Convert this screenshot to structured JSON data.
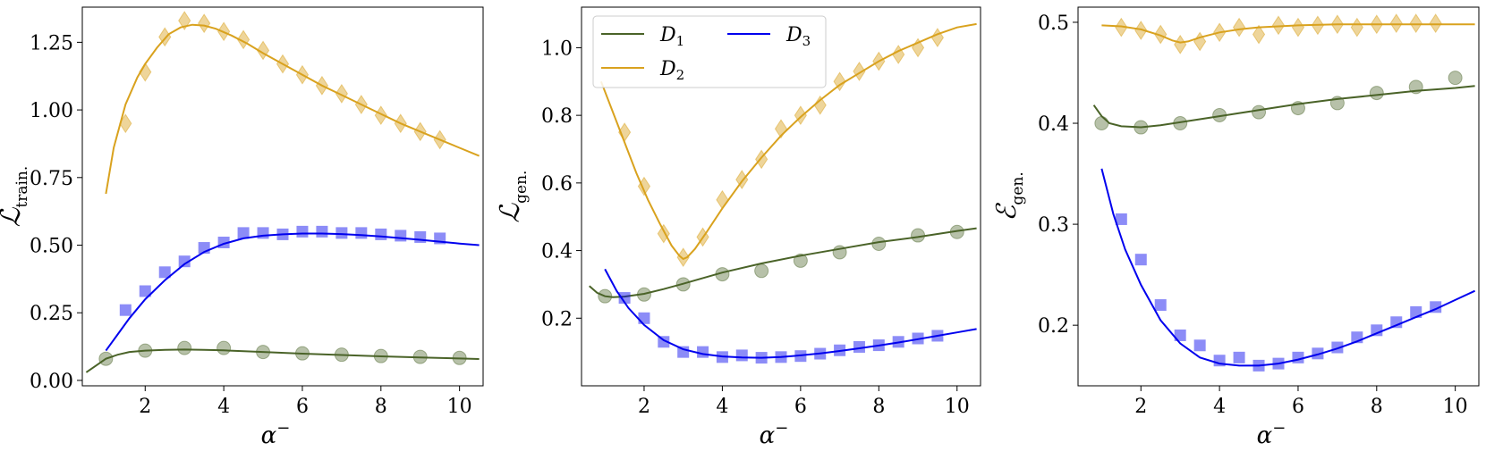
{
  "colors": {
    "D1": "#4a6328",
    "D2": "#d9a21e",
    "D3": "#0000ee"
  },
  "legend": {
    "items": [
      {
        "key": "D1",
        "label_main": "D",
        "label_sub": "1"
      },
      {
        "key": "D2",
        "label_main": "D",
        "label_sub": "2"
      },
      {
        "key": "D3",
        "label_main": "D",
        "label_sub": "3"
      }
    ]
  },
  "chart_data": [
    {
      "type": "line",
      "xlabel_main": "α",
      "xlabel_sup": "−",
      "ylabel_main": "ℒ",
      "ylabel_sub": "train.",
      "xlim": [
        0.4,
        10.6
      ],
      "ylim": [
        -0.02,
        1.38
      ],
      "xticks": [
        2,
        4,
        6,
        8,
        10
      ],
      "yticks": [
        0.0,
        0.25,
        0.5,
        0.75,
        1.0,
        1.25
      ],
      "ytick_labels": [
        "0.00",
        "0.25",
        "0.50",
        "0.75",
        "1.00",
        "1.25"
      ],
      "series": [
        {
          "key": "D2",
          "marker": "diamond",
          "curve_x": [
            1.0,
            1.2,
            1.5,
            1.8,
            2.0,
            2.3,
            2.6,
            2.9,
            3.2,
            3.5,
            3.8,
            4.2,
            4.6,
            5.0,
            5.5,
            6.0,
            6.5,
            7.0,
            7.5,
            8.0,
            8.5,
            9.0,
            9.5,
            10.0,
            10.5
          ],
          "curve_y": [
            0.69,
            0.86,
            1.02,
            1.12,
            1.17,
            1.23,
            1.28,
            1.305,
            1.315,
            1.312,
            1.3,
            1.275,
            1.245,
            1.21,
            1.17,
            1.13,
            1.09,
            1.055,
            1.02,
            0.985,
            0.95,
            0.92,
            0.89,
            0.86,
            0.83
          ],
          "points_x": [
            1.5,
            2.0,
            2.5,
            3.0,
            3.5,
            4.0,
            4.5,
            5.0,
            5.5,
            6.0,
            6.5,
            7.0,
            7.5,
            8.0,
            8.5,
            9.0,
            9.5
          ],
          "points_y": [
            0.95,
            1.14,
            1.27,
            1.33,
            1.32,
            1.29,
            1.26,
            1.22,
            1.17,
            1.13,
            1.09,
            1.06,
            1.02,
            0.98,
            0.95,
            0.92,
            0.89
          ]
        },
        {
          "key": "D3",
          "marker": "square",
          "curve_x": [
            1.0,
            1.3,
            1.6,
            2.0,
            2.5,
            3.0,
            3.5,
            4.0,
            4.5,
            5.0,
            5.5,
            6.0,
            6.5,
            7.0,
            7.5,
            8.0,
            8.5,
            9.0,
            9.5,
            10.0,
            10.5
          ],
          "curve_y": [
            0.11,
            0.17,
            0.23,
            0.3,
            0.37,
            0.43,
            0.475,
            0.505,
            0.525,
            0.535,
            0.54,
            0.543,
            0.543,
            0.541,
            0.537,
            0.532,
            0.526,
            0.52,
            0.513,
            0.506,
            0.5
          ],
          "points_x": [
            1.5,
            2.0,
            2.5,
            3.0,
            3.5,
            4.0,
            4.5,
            5.0,
            5.5,
            6.0,
            6.5,
            7.0,
            7.5,
            8.0,
            8.5,
            9.0,
            9.5
          ],
          "points_y": [
            0.26,
            0.33,
            0.4,
            0.44,
            0.49,
            0.51,
            0.545,
            0.545,
            0.54,
            0.55,
            0.55,
            0.545,
            0.545,
            0.54,
            0.535,
            0.53,
            0.525
          ]
        },
        {
          "key": "D1",
          "marker": "circle",
          "curve_x": [
            0.5,
            0.8,
            1.0,
            1.3,
            1.6,
            2.0,
            2.5,
            3.0,
            3.5,
            4.0,
            5.0,
            6.0,
            7.0,
            8.0,
            9.0,
            10.0,
            10.5
          ],
          "curve_y": [
            0.03,
            0.06,
            0.08,
            0.095,
            0.105,
            0.11,
            0.113,
            0.114,
            0.113,
            0.111,
            0.105,
            0.099,
            0.094,
            0.089,
            0.085,
            0.081,
            0.079
          ],
          "points_x": [
            1,
            2,
            3,
            4,
            5,
            6,
            7,
            8,
            9,
            10
          ],
          "points_y": [
            0.08,
            0.11,
            0.12,
            0.12,
            0.105,
            0.1,
            0.095,
            0.09,
            0.087,
            0.083
          ]
        }
      ]
    },
    {
      "type": "line",
      "xlabel_main": "α",
      "xlabel_sup": "−",
      "ylabel_main": "ℒ",
      "ylabel_sub": "gen.",
      "xlim": [
        0.4,
        10.6
      ],
      "ylim": [
        0.0,
        1.12
      ],
      "xticks": [
        2,
        4,
        6,
        8,
        10
      ],
      "yticks": [
        0.2,
        0.4,
        0.6,
        0.8,
        1.0
      ],
      "ytick_labels": [
        "0.2",
        "0.4",
        "0.6",
        "0.8",
        "1.0"
      ],
      "series": [
        {
          "key": "D2",
          "marker": "diamond",
          "curve_x": [
            0.9,
            1.2,
            1.5,
            1.8,
            2.1,
            2.4,
            2.7,
            2.9,
            3.0,
            3.1,
            3.3,
            3.6,
            4.0,
            4.5,
            5.0,
            5.5,
            6.0,
            6.5,
            7.0,
            7.5,
            8.0,
            8.5,
            9.0,
            9.5,
            10.0,
            10.5
          ],
          "curve_y": [
            0.9,
            0.81,
            0.72,
            0.63,
            0.55,
            0.48,
            0.415,
            0.385,
            0.375,
            0.38,
            0.405,
            0.455,
            0.525,
            0.605,
            0.675,
            0.74,
            0.795,
            0.845,
            0.89,
            0.925,
            0.96,
            0.99,
            1.015,
            1.04,
            1.06,
            1.07
          ],
          "points_x": [
            1.5,
            2.0,
            2.5,
            3.0,
            3.5,
            4.0,
            4.5,
            5.0,
            5.5,
            6.0,
            6.5,
            7.0,
            7.5,
            8.0,
            8.5,
            9.0,
            9.5
          ],
          "points_y": [
            0.75,
            0.59,
            0.45,
            0.38,
            0.44,
            0.55,
            0.61,
            0.67,
            0.76,
            0.8,
            0.83,
            0.9,
            0.93,
            0.96,
            0.98,
            1.0,
            1.03
          ]
        },
        {
          "key": "D1",
          "marker": "circle",
          "curve_x": [
            0.6,
            0.8,
            1.0,
            1.2,
            1.5,
            2.0,
            2.5,
            3.0,
            4.0,
            5.0,
            6.0,
            7.0,
            8.0,
            9.0,
            10.0,
            10.5
          ],
          "curve_y": [
            0.295,
            0.275,
            0.265,
            0.262,
            0.264,
            0.272,
            0.286,
            0.302,
            0.335,
            0.362,
            0.385,
            0.405,
            0.425,
            0.44,
            0.458,
            0.466
          ],
          "points_x": [
            1,
            2,
            3,
            4,
            5,
            6,
            7,
            8,
            9,
            10
          ],
          "points_y": [
            0.265,
            0.27,
            0.3,
            0.33,
            0.34,
            0.37,
            0.395,
            0.42,
            0.445,
            0.455
          ]
        },
        {
          "key": "D3",
          "marker": "square",
          "curve_x": [
            1.0,
            1.3,
            1.6,
            2.0,
            2.5,
            3.0,
            3.5,
            4.0,
            4.5,
            5.0,
            5.5,
            6.0,
            6.5,
            7.0,
            7.5,
            8.0,
            8.5,
            9.0,
            9.5,
            10.0,
            10.5
          ],
          "curve_y": [
            0.345,
            0.28,
            0.23,
            0.18,
            0.135,
            0.108,
            0.094,
            0.087,
            0.084,
            0.083,
            0.085,
            0.09,
            0.096,
            0.103,
            0.111,
            0.119,
            0.128,
            0.138,
            0.148,
            0.158,
            0.168
          ],
          "points_x": [
            1.5,
            2.0,
            2.5,
            3.0,
            3.5,
            4.0,
            4.5,
            5.0,
            5.5,
            6.0,
            6.5,
            7.0,
            7.5,
            8.0,
            8.5,
            9.0,
            9.5
          ],
          "points_y": [
            0.26,
            0.2,
            0.13,
            0.1,
            0.1,
            0.085,
            0.09,
            0.083,
            0.085,
            0.088,
            0.095,
            0.105,
            0.115,
            0.12,
            0.13,
            0.14,
            0.148
          ]
        }
      ]
    },
    {
      "type": "line",
      "xlabel_main": "α",
      "xlabel_sup": "−",
      "ylabel_main": "ℰ",
      "ylabel_sub": "gen.",
      "xlim": [
        0.4,
        10.6
      ],
      "ylim": [
        0.14,
        0.515
      ],
      "xticks": [
        2,
        4,
        6,
        8,
        10
      ],
      "yticks": [
        0.2,
        0.3,
        0.4,
        0.5
      ],
      "ytick_labels": [
        "0.2",
        "0.3",
        "0.4",
        "0.5"
      ],
      "series": [
        {
          "key": "D2",
          "marker": "diamond",
          "curve_x": [
            1.0,
            1.5,
            2.0,
            2.5,
            2.8,
            3.0,
            3.2,
            3.5,
            4.0,
            4.5,
            5.0,
            6.0,
            7.0,
            8.0,
            9.0,
            10.0,
            10.5
          ],
          "curve_y": [
            0.497,
            0.496,
            0.493,
            0.487,
            0.482,
            0.48,
            0.481,
            0.485,
            0.49,
            0.493,
            0.495,
            0.497,
            0.498,
            0.498,
            0.498,
            0.498,
            0.498
          ],
          "points_x": [
            1.5,
            2.0,
            2.5,
            3.0,
            3.5,
            4.0,
            4.5,
            5.0,
            5.5,
            6.0,
            6.5,
            7.0,
            7.5,
            8.0,
            8.5,
            9.0,
            9.5
          ],
          "points_y": [
            0.495,
            0.492,
            0.488,
            0.478,
            0.481,
            0.49,
            0.495,
            0.488,
            0.497,
            0.495,
            0.497,
            0.498,
            0.495,
            0.498,
            0.499,
            0.499,
            0.499
          ]
        },
        {
          "key": "D1",
          "marker": "circle",
          "curve_x": [
            0.8,
            1.0,
            1.2,
            1.5,
            2.0,
            2.5,
            3.0,
            4.0,
            5.0,
            6.0,
            7.0,
            8.0,
            9.0,
            10.0,
            10.5
          ],
          "curve_y": [
            0.418,
            0.407,
            0.4,
            0.397,
            0.396,
            0.398,
            0.401,
            0.407,
            0.413,
            0.419,
            0.424,
            0.428,
            0.432,
            0.435,
            0.437
          ],
          "points_x": [
            1,
            2,
            3,
            4,
            5,
            6,
            7,
            8,
            9,
            10
          ],
          "points_y": [
            0.4,
            0.396,
            0.4,
            0.408,
            0.411,
            0.415,
            0.42,
            0.43,
            0.436,
            0.445
          ]
        },
        {
          "key": "D3",
          "marker": "square",
          "curve_x": [
            1.0,
            1.3,
            1.6,
            2.0,
            2.5,
            3.0,
            3.5,
            4.0,
            4.5,
            5.0,
            5.5,
            6.0,
            6.5,
            7.0,
            7.5,
            8.0,
            8.5,
            9.0,
            9.5,
            10.0,
            10.5
          ],
          "curve_y": [
            0.355,
            0.31,
            0.275,
            0.24,
            0.205,
            0.182,
            0.168,
            0.162,
            0.16,
            0.16,
            0.162,
            0.166,
            0.171,
            0.177,
            0.184,
            0.192,
            0.2,
            0.208,
            0.216,
            0.225,
            0.234
          ],
          "points_x": [
            1.5,
            2.0,
            2.5,
            3.0,
            3.5,
            4.0,
            4.5,
            5.0,
            5.5,
            6.0,
            6.5,
            7.0,
            7.5,
            8.0,
            8.5,
            9.0,
            9.5
          ],
          "points_y": [
            0.305,
            0.265,
            0.22,
            0.19,
            0.18,
            0.165,
            0.168,
            0.16,
            0.162,
            0.168,
            0.172,
            0.178,
            0.188,
            0.195,
            0.203,
            0.213,
            0.218
          ]
        }
      ]
    }
  ]
}
